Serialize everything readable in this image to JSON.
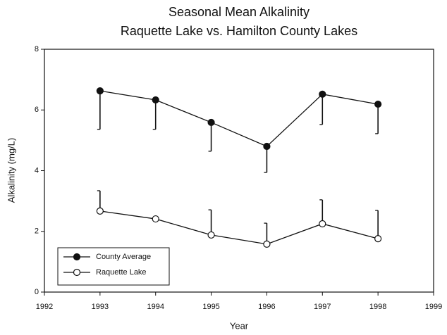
{
  "chart_data": {
    "type": "line",
    "title": [
      "Seasonal Mean Alkalinity",
      "Raquette Lake vs. Hamilton County Lakes"
    ],
    "x_label": "Year",
    "y_label": "Alkalinity (mg/L)",
    "x": [
      1993,
      1994,
      1995,
      1996,
      1997,
      1998
    ],
    "series": [
      {
        "name": "County Average",
        "color": "#111111",
        "marker": "filled",
        "values": [
          6.63,
          6.33,
          5.59,
          4.8,
          6.52,
          6.19
        ],
        "errors": [
          1.27,
          0.97,
          0.95,
          0.86,
          1.0,
          0.97
        ],
        "error_direction": "down"
      },
      {
        "name": "Raquette Lake",
        "color": "#111111",
        "marker": "open",
        "values": [
          2.67,
          2.41,
          1.88,
          1.58,
          2.25,
          1.76
        ],
        "errors": [
          0.67,
          0,
          0.83,
          0.69,
          0.79,
          0.93
        ],
        "error_direction": "up"
      }
    ],
    "xlim": [
      1992,
      1999
    ],
    "xticks": [
      1992,
      1993,
      1994,
      1995,
      1996,
      1997,
      1998,
      1999
    ],
    "ylim": [
      0,
      8
    ],
    "yticks": [
      0,
      2,
      4,
      6,
      8
    ],
    "legend": "lower left"
  }
}
